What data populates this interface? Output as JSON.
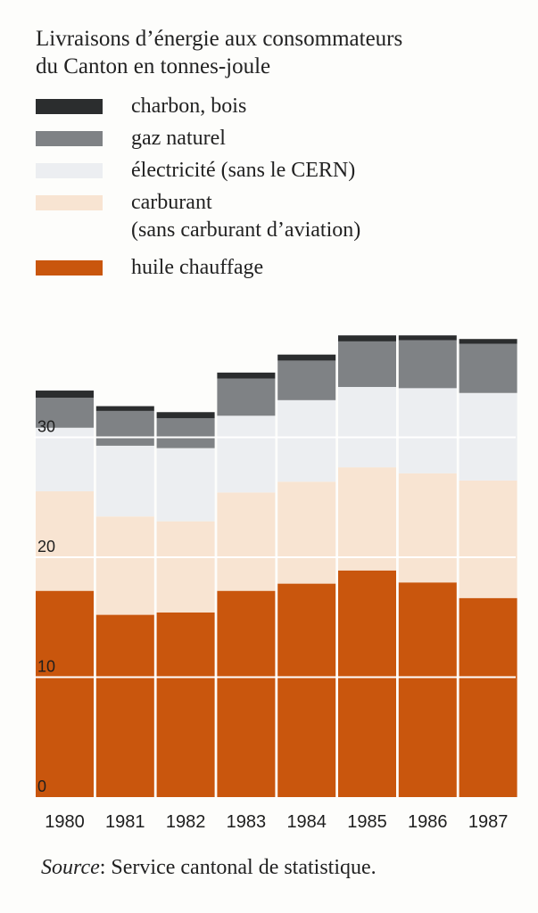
{
  "header": {
    "title_line1": "Livraisons d’énergie aux consommateurs",
    "title_line2": "du Canton en tonnes-joule"
  },
  "legend": [
    {
      "label": "charbon, bois",
      "color": "#2b2d2e"
    },
    {
      "label": "gaz naturel",
      "color": "#7f8285"
    },
    {
      "label": "électricité (sans le CERN)",
      "color": "#eceef1"
    },
    {
      "label_line1": "carburant",
      "label_line2": "(sans carburant d’aviation)",
      "color": "#f8e4d2"
    },
    {
      "label": "huile chauffage",
      "color": "#c9560d"
    }
  ],
  "source": {
    "label": "Source",
    "text": ": Service cantonal de statistique."
  },
  "chart_data": {
    "type": "bar",
    "stacked": true,
    "categories": [
      "1980",
      "1981",
      "1982",
      "1983",
      "1984",
      "1985",
      "1986",
      "1987"
    ],
    "series": [
      {
        "name": "huile chauffage",
        "color": "#c9560d",
        "values": [
          17.2,
          15.2,
          15.4,
          17.2,
          17.8,
          18.9,
          17.9,
          16.6
        ]
      },
      {
        "name": "carburant (sans carburant d’aviation)",
        "color": "#f8e4d2",
        "values": [
          8.3,
          8.2,
          7.6,
          8.2,
          8.5,
          8.6,
          9.1,
          9.8
        ]
      },
      {
        "name": "électricité (sans le CERN)",
        "color": "#eceef1",
        "values": [
          5.3,
          5.9,
          6.1,
          6.4,
          6.8,
          6.7,
          7.1,
          7.3
        ]
      },
      {
        "name": "gaz naturel",
        "color": "#7f8285",
        "values": [
          2.5,
          2.9,
          2.5,
          3.1,
          3.3,
          3.8,
          4.0,
          4.1
        ]
      },
      {
        "name": "charbon, bois",
        "color": "#2b2d2e",
        "values": [
          0.6,
          0.4,
          0.5,
          0.5,
          0.5,
          0.5,
          0.4,
          0.4
        ]
      }
    ],
    "y_ticks": [
      "0",
      "10",
      "20",
      "30"
    ],
    "ylim": [
      0,
      40
    ],
    "grid": true,
    "legend_position": "top-left"
  }
}
